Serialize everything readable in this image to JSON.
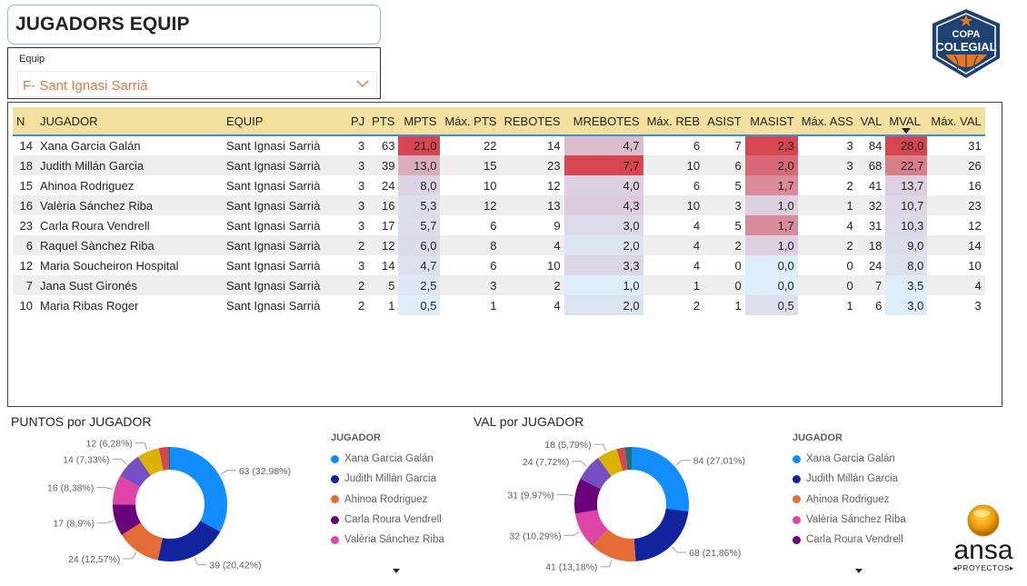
{
  "header": {
    "title": "JUGADORS EQUIP"
  },
  "slicer": {
    "label": "Equip",
    "selected": "F- Sant Ignasi Sarrià",
    "icon": "chevron-down-icon"
  },
  "logos": {
    "copa_line1": "COPA",
    "copa_line2": "COLEGIAL",
    "ansa_word": "ansa",
    "ansa_sub": "◂PROYECTOS▸"
  },
  "table": {
    "columns": [
      "N",
      "JUGADOR",
      "EQUIP",
      "PJ",
      "PTS",
      "MPTS",
      "Máx. PTS",
      "REBOTES",
      "MREBOTES",
      "Máx. REB",
      "ASIST",
      "MASIST",
      "Máx. ASS",
      "VAL",
      "MVAL",
      "Máx. VAL"
    ],
    "sorted_column": "MVAL",
    "sort_direction": "desc",
    "rows": [
      {
        "n": "14",
        "jugador": "Xana Garcia Galán",
        "equip": "Sant Ignasi Sarrià",
        "pj": "3",
        "pts": "63",
        "mpts": "21,0",
        "max_pts": "22",
        "rebotes": "14",
        "mrebotes": "4,7",
        "max_reb": "6",
        "asist": "7",
        "masist": "2,3",
        "max_ass": "3",
        "val": "84",
        "mval": "28,0",
        "max_val": "31"
      },
      {
        "n": "18",
        "jugador": "Judith Millán Garcia",
        "equip": "Sant Ignasi Sarrià",
        "pj": "3",
        "pts": "39",
        "mpts": "13,0",
        "max_pts": "15",
        "rebotes": "23",
        "mrebotes": "7,7",
        "max_reb": "10",
        "asist": "6",
        "masist": "2,0",
        "max_ass": "3",
        "val": "68",
        "mval": "22,7",
        "max_val": "26"
      },
      {
        "n": "15",
        "jugador": "Ahinoa Rodriguez",
        "equip": "Sant Ignasi Sarrià",
        "pj": "3",
        "pts": "24",
        "mpts": "8,0",
        "max_pts": "10",
        "rebotes": "12",
        "mrebotes": "4,0",
        "max_reb": "6",
        "asist": "5",
        "masist": "1,7",
        "max_ass": "2",
        "val": "41",
        "mval": "13,7",
        "max_val": "16"
      },
      {
        "n": "16",
        "jugador": "Valèria Sánchez Riba",
        "equip": "Sant Ignasi Sarrià",
        "pj": "3",
        "pts": "16",
        "mpts": "5,3",
        "max_pts": "12",
        "rebotes": "13",
        "mrebotes": "4,3",
        "max_reb": "10",
        "asist": "3",
        "masist": "1,0",
        "max_ass": "1",
        "val": "32",
        "mval": "10,7",
        "max_val": "23"
      },
      {
        "n": "23",
        "jugador": "Carla Roura Vendrell",
        "equip": "Sant Ignasi Sarrià",
        "pj": "3",
        "pts": "17",
        "mpts": "5,7",
        "max_pts": "6",
        "rebotes": "9",
        "mrebotes": "3,0",
        "max_reb": "4",
        "asist": "5",
        "masist": "1,7",
        "max_ass": "4",
        "val": "31",
        "mval": "10,3",
        "max_val": "12"
      },
      {
        "n": "6",
        "jugador": "Raquel Sànchez Riba",
        "equip": "Sant Ignasi Sarrià",
        "pj": "2",
        "pts": "12",
        "mpts": "6,0",
        "max_pts": "8",
        "rebotes": "4",
        "mrebotes": "2,0",
        "max_reb": "4",
        "asist": "2",
        "masist": "1,0",
        "max_ass": "2",
        "val": "18",
        "mval": "9,0",
        "max_val": "14"
      },
      {
        "n": "12",
        "jugador": "Maria Soucheiron Hospital",
        "equip": "Sant Ignasi Sarrià",
        "pj": "3",
        "pts": "14",
        "mpts": "4,7",
        "max_pts": "6",
        "rebotes": "10",
        "mrebotes": "3,3",
        "max_reb": "4",
        "asist": "0",
        "masist": "0,0",
        "max_ass": "0",
        "val": "24",
        "mval": "8,0",
        "max_val": "10"
      },
      {
        "n": "7",
        "jugador": "Jana Sust Gironés",
        "equip": "Sant Ignasi Sarrià",
        "pj": "2",
        "pts": "5",
        "mpts": "2,5",
        "max_pts": "3",
        "rebotes": "2",
        "mrebotes": "1,0",
        "max_reb": "1",
        "asist": "0",
        "masist": "0,0",
        "max_ass": "0",
        "val": "7",
        "mval": "3,5",
        "max_val": "4"
      },
      {
        "n": "10",
        "jugador": "Maria Ribas Roger",
        "equip": "Sant Ignasi Sarrià",
        "pj": "2",
        "pts": "1",
        "mpts": "0,5",
        "max_pts": "1",
        "rebotes": "4",
        "mrebotes": "2,0",
        "max_reb": "2",
        "asist": "1",
        "masist": "0,5",
        "max_ass": "1",
        "val": "6",
        "mval": "3,0",
        "max_val": "3"
      }
    ],
    "heat_colors": {
      "low": "#ddeefa",
      "mid": "#dccbdc",
      "high": "#d64550"
    }
  },
  "chart_data": [
    {
      "type": "pie",
      "variant": "donut",
      "title": "PUNTOS por JUGADOR",
      "legend_title": "JUGADOR",
      "legend_position": "right",
      "categories": [
        "Xana Garcia Galán",
        "Judith Millán Garcia",
        "Ahinoa Rodriguez",
        "Carla Roura Vendrell",
        "Valèria Sánchez Riba",
        "Maria Soucheiron Hospital",
        "Raquel Sànchez Riba",
        "Jana Sust Gironés",
        "Maria Ribas Roger"
      ],
      "values": [
        63,
        39,
        24,
        17,
        16,
        14,
        12,
        5,
        1
      ],
      "labels": [
        "63 (32,98%)",
        "39 (20,42%)",
        "24 (12,57%)",
        "17 (8,9%)",
        "16 (8,38%)",
        "14 (7,33%)",
        "12 (6,28%)",
        "",
        ""
      ],
      "colors": [
        "#118dff",
        "#12239e",
        "#e66c37",
        "#6b007b",
        "#e044a7",
        "#744ec2",
        "#d9b300",
        "#d64550",
        "#197278"
      ],
      "legend_visible": [
        "Xana Garcia Galán",
        "Judith Millán Garcia",
        "Ahinoa Rodriguez",
        "Carla Roura Vendrell",
        "Valèria Sánchez Riba"
      ]
    },
    {
      "type": "pie",
      "variant": "donut",
      "title": "VAL por JUGADOR",
      "legend_title": "JUGADOR",
      "legend_position": "right",
      "categories": [
        "Xana Garcia Galán",
        "Judith Millán Garcia",
        "Ahinoa Rodriguez",
        "Valèria Sánchez Riba",
        "Carla Roura Vendrell",
        "Maria Soucheiron Hospital",
        "Raquel Sànchez Riba",
        "Jana Sust Gironés",
        "Maria Ribas Roger"
      ],
      "values": [
        84,
        68,
        41,
        32,
        31,
        24,
        18,
        7,
        6
      ],
      "labels": [
        "84 (27,01%)",
        "68 (21,86%)",
        "41 (13,18%)",
        "32 (10,29%)",
        "31 (9,97%)",
        "24 (7,72%)",
        "18 (5,79%)",
        "",
        ""
      ],
      "colors": [
        "#118dff",
        "#12239e",
        "#e66c37",
        "#e044a7",
        "#6b007b",
        "#744ec2",
        "#d9b300",
        "#d64550",
        "#197278"
      ],
      "legend_visible": [
        "Xana Garcia Galán",
        "Judith Millán Garcia",
        "Ahinoa Rodriguez",
        "Valèria Sánchez Riba",
        "Carla Roura Vendrell"
      ]
    }
  ]
}
